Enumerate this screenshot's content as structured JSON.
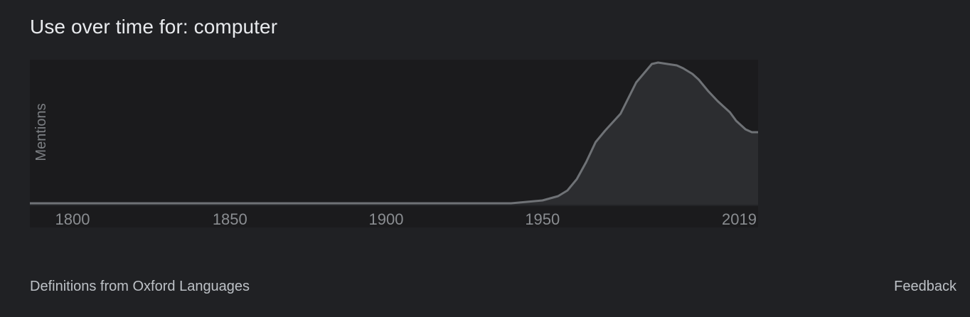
{
  "header": {
    "title": "Use over time for: computer"
  },
  "chart_data": {
    "type": "area",
    "xlabel": "",
    "ylabel": "Mentions",
    "xlim": [
      1786,
      2019
    ],
    "ylim": [
      0,
      100
    ],
    "x_ticks": [
      "1800",
      "1850",
      "1900",
      "1950",
      "2019"
    ],
    "x_tick_values": [
      1800,
      1850,
      1900,
      1950,
      2019
    ],
    "grid": false,
    "line_color": "#6f7276",
    "fill_color": "#2c2d30",
    "plot_bg": "#1b1b1d",
    "series": [
      {
        "x": [
          1786,
          1800,
          1850,
          1900,
          1930,
          1940,
          1945,
          1950,
          1955,
          1958,
          1961,
          1964,
          1967,
          1970,
          1975,
          1980,
          1985,
          1987,
          1990,
          1993,
          1995,
          1998,
          2000,
          2003,
          2006,
          2010,
          2012,
          2015,
          2017,
          2019
        ],
        "y": [
          1,
          1,
          1,
          1,
          1,
          1,
          2,
          3,
          6,
          10,
          18,
          30,
          44,
          52,
          64,
          86,
          99,
          100,
          99,
          98,
          96,
          92,
          88,
          80,
          73,
          65,
          59,
          53,
          51,
          51
        ]
      }
    ]
  },
  "footer": {
    "source": "Definitions from Oxford Languages",
    "feedback": "Feedback"
  }
}
